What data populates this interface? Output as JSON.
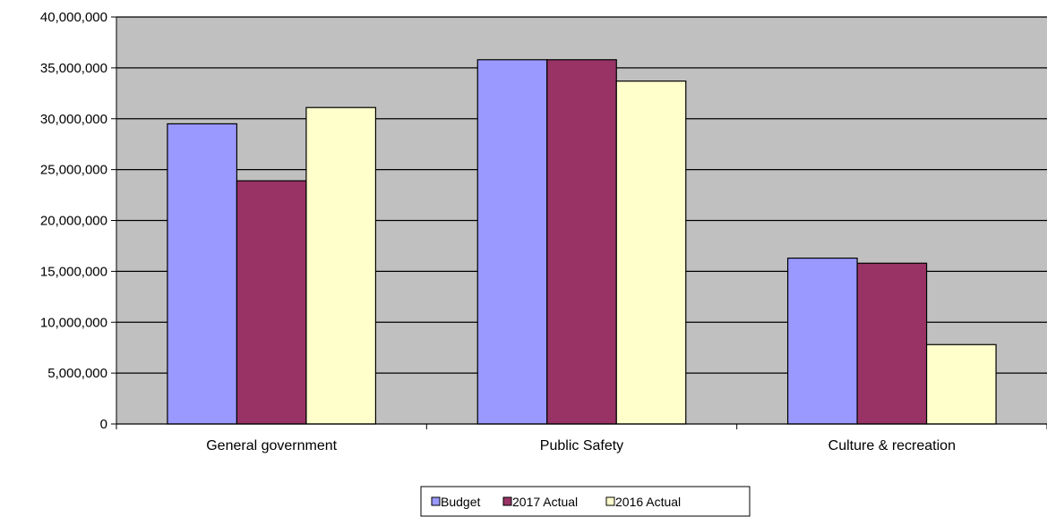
{
  "chart_data": {
    "type": "bar",
    "title": "",
    "xlabel": "",
    "ylabel": "",
    "categories": [
      "General government",
      "Public Safety",
      "Culture & recreation"
    ],
    "series": [
      {
        "name": "Budget",
        "color": "#9999ff",
        "values": [
          29500000,
          35800000,
          16300000
        ]
      },
      {
        "name": "2017 Actual",
        "color": "#993366",
        "values": [
          23900000,
          35800000,
          15800000
        ]
      },
      {
        "name": "2016 Actual",
        "color": "#ffffcc",
        "values": [
          31100000,
          33700000,
          7800000
        ]
      }
    ],
    "ylim": [
      0,
      40000000
    ],
    "yticks": [
      "0",
      "5,000,000",
      "10,000,000",
      "15,000,000",
      "20,000,000",
      "25,000,000",
      "30,000,000",
      "35,000,000",
      "40,000,000"
    ],
    "ytick_values": [
      0,
      5000000,
      10000000,
      15000000,
      20000000,
      25000000,
      30000000,
      35000000,
      40000000
    ],
    "grid": true,
    "plot_background": "#c0c0c0",
    "legend_position": "bottom"
  }
}
